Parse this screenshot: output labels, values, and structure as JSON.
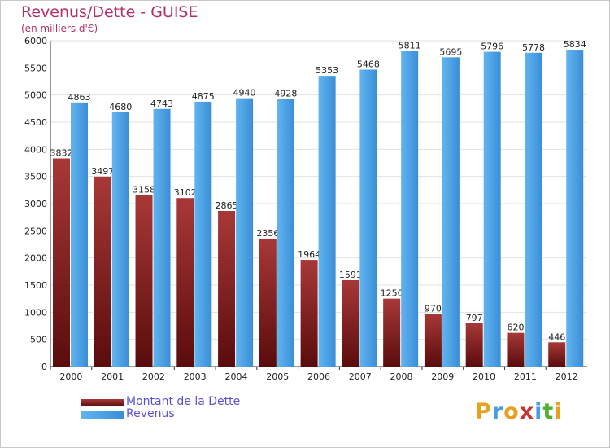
{
  "header": {
    "title": "Revenus/Dette - GUISE",
    "subtitle": "(en milliers d'€)"
  },
  "colors": {
    "title": "#b0306a",
    "legend_text": "#5a52d6",
    "dette": "#7a1818",
    "revenus": "#4a9ee0",
    "grid": "#e2e2e2",
    "axis": "#333333"
  },
  "chart_data": {
    "type": "bar",
    "title": "Revenus/Dette - GUISE",
    "subtitle": "(en milliers d'€)",
    "categories": [
      "2000",
      "2001",
      "2002",
      "2003",
      "2004",
      "2005",
      "2006",
      "2007",
      "2008",
      "2009",
      "2010",
      "2011",
      "2012"
    ],
    "series": [
      {
        "name": "Montant de la Dette",
        "labels": [
          "3832",
          "3497",
          "3158",
          "3102",
          "2865",
          "2356",
          "1964",
          "1591",
          "1250",
          "970",
          "797",
          "620",
          "446"
        ],
        "values": [
          3832,
          3497,
          3158,
          3102,
          2865,
          2356,
          1964,
          1591,
          1250,
          970,
          797,
          620,
          446
        ]
      },
      {
        "name": "Revenus",
        "labels": [
          "4863",
          "4680",
          "4743",
          "4875",
          "4940",
          "4928",
          "5353",
          "5468",
          "5811",
          "5695",
          "5796",
          "5778",
          "5834"
        ],
        "values": [
          4863,
          4680,
          4743,
          4875,
          4940,
          4928,
          5353,
          5468,
          5811,
          5695,
          5796,
          5778,
          5834
        ]
      }
    ],
    "yticks": [
      "0",
      "500",
      "1000",
      "1500",
      "2000",
      "2500",
      "3000",
      "3500",
      "4000",
      "4500",
      "5000",
      "5500",
      "6000"
    ],
    "ylim": [
      0,
      6000
    ],
    "grid": true,
    "legend_position": "bottom-left"
  },
  "legend": {
    "items": [
      {
        "label": "Montant de la Dette"
      },
      {
        "label": "Revenus"
      }
    ]
  },
  "logo": {
    "text": "Proxiti",
    "letters": [
      "P",
      "r",
      "o",
      "x",
      "i",
      "t",
      "i"
    ],
    "letter_colors": [
      "#e8a020",
      "#4a9ee0",
      "#e8a020",
      "#d03030",
      "#4a9ee0",
      "#50b030",
      "#e8a020"
    ]
  }
}
